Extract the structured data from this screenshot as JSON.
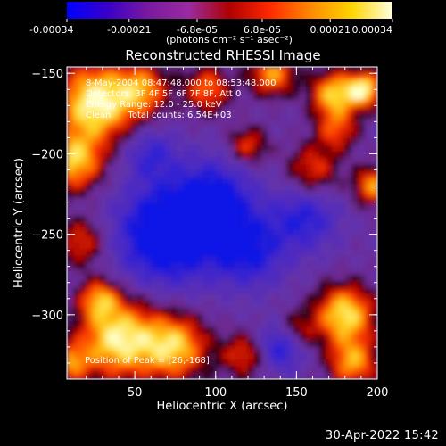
{
  "colorbar": {
    "ticks": [
      "-0.00034",
      "-0.00021",
      "-6.8e-05",
      "6.8e-05",
      "0.00021",
      "0.00034"
    ],
    "unit_label": "(photons cm⁻² s⁻¹ asec⁻²)",
    "range": [
      -0.00034,
      0.00034
    ],
    "colors": [
      "#0000ff",
      "#3a00c8",
      "#7a1aa0",
      "#9a2aa0",
      "#b00000",
      "#ff2a00",
      "#ff8a00",
      "#ffd400",
      "#ffffe0"
    ]
  },
  "chart_data": {
    "type": "heatmap",
    "title": "Reconstructed RHESSI Image",
    "xlabel": "Heliocentric X (arcsec)",
    "ylabel": "Heliocentric Y (arcsec)",
    "xlim": [
      8,
      200
    ],
    "ylim": [
      -340,
      -146
    ],
    "xticks": [
      50,
      100,
      150,
      200
    ],
    "yticks": [
      -150,
      -200,
      -250,
      -300
    ],
    "xminor_step": 10,
    "yminor_step": 10,
    "annotations": [
      "8-May-2004 08:47:48.000 to 08:53:48.000",
      "Detectors: 3F 4F 5F 6F 7F 8F, Att 0",
      "Energy Range: 12.0 - 25.0 keV",
      "Clean      Total counts: 6.54E+03"
    ],
    "peak_label": "Position of Peak = [26,-168]",
    "peak": [
      26,
      -168
    ]
  },
  "footer": {
    "timestamp": "30-Apr-2022 15:42"
  }
}
